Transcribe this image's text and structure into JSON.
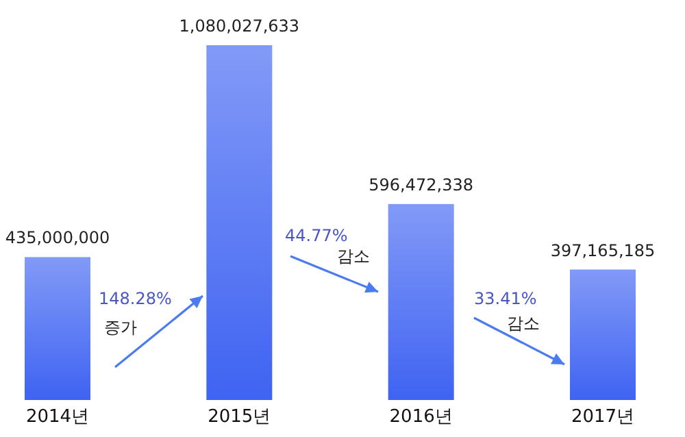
{
  "chart_data": {
    "type": "bar",
    "categories": [
      "2014년",
      "2015년",
      "2016년",
      "2017년"
    ],
    "values": [
      435000000,
      1080027633,
      596472338,
      397165185
    ],
    "value_labels": [
      "435,000,000",
      "1,080,027,633",
      "596,472,338",
      "397,165,185"
    ],
    "color": "#3f63f2",
    "annotations": [
      "148.28%",
      "증가",
      "44.77%",
      "감소",
      "33.41%",
      "감소"
    ]
  }
}
